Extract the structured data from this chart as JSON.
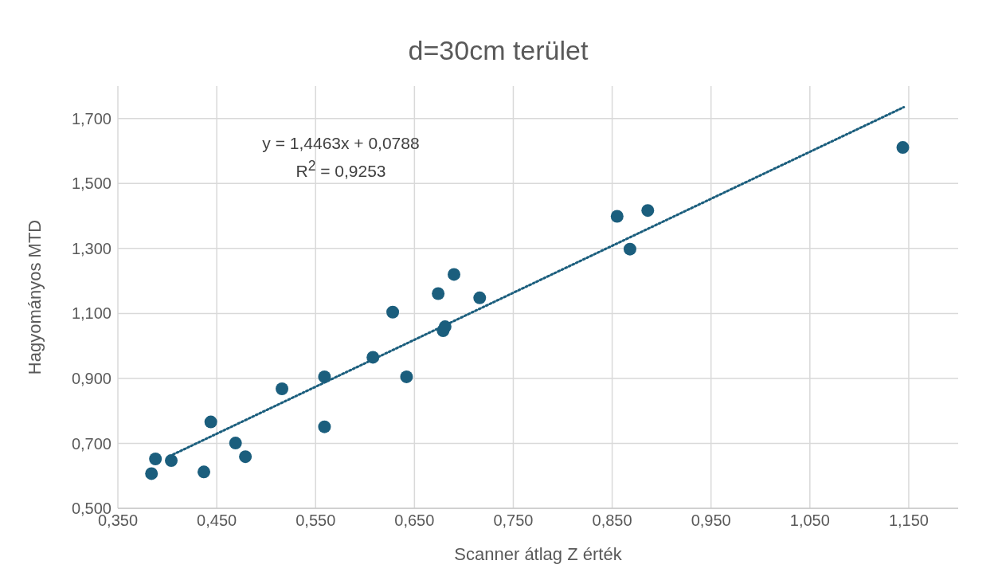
{
  "chart_data": {
    "type": "scatter",
    "title": "d=30cm terület",
    "xlabel": "Scanner átlag Z érték",
    "ylabel": "Hagyományos MTD",
    "xlim": [
      0.35,
      1.2
    ],
    "xticks": [
      {
        "value": 0.35,
        "label": "0,350"
      },
      {
        "value": 0.45,
        "label": "0,450"
      },
      {
        "value": 0.55,
        "label": "0,550"
      },
      {
        "value": 0.65,
        "label": "0,650"
      },
      {
        "value": 0.75,
        "label": "0,750"
      },
      {
        "value": 0.85,
        "label": "0,850"
      },
      {
        "value": 0.95,
        "label": "0,950"
      },
      {
        "value": 1.05,
        "label": "1,050"
      },
      {
        "value": 1.15,
        "label": "1,150"
      }
    ],
    "ylim": [
      0.5,
      1.8
    ],
    "yticks": [
      {
        "value": 0.5,
        "label": "0,500"
      },
      {
        "value": 0.7,
        "label": "0,700"
      },
      {
        "value": 0.9,
        "label": "0,900"
      },
      {
        "value": 1.1,
        "label": "1,100"
      },
      {
        "value": 1.3,
        "label": "1,300"
      },
      {
        "value": 1.5,
        "label": "1,500"
      },
      {
        "value": 1.7,
        "label": "1,700"
      }
    ],
    "grid": true,
    "marker": "circle",
    "series": [
      {
        "color": "#1b5e7d",
        "x": [
          0.384,
          0.388,
          0.404,
          0.437,
          0.444,
          0.469,
          0.479,
          0.516,
          0.559,
          0.559,
          0.608,
          0.628,
          0.642,
          0.674,
          0.679,
          0.681,
          0.69,
          0.716,
          0.855,
          0.868,
          0.886,
          1.144
        ],
        "values": [
          0.607,
          0.652,
          0.647,
          0.612,
          0.766,
          0.701,
          0.659,
          0.868,
          0.905,
          0.751,
          0.965,
          1.104,
          0.905,
          1.161,
          1.047,
          1.059,
          1.22,
          1.148,
          1.399,
          1.298,
          1.417,
          1.611
        ]
      },
      {
        "type": "line",
        "color": "#1b5e7d",
        "line_style": "dotted",
        "marker": "none",
        "x": [
          0.406,
          1.145
        ],
        "values": [
          0.666,
          1.735
        ]
      }
    ],
    "annotations": [
      "y = 1,4463x + 0,0788",
      "R$^{2}$ = 0,9253"
    ]
  }
}
